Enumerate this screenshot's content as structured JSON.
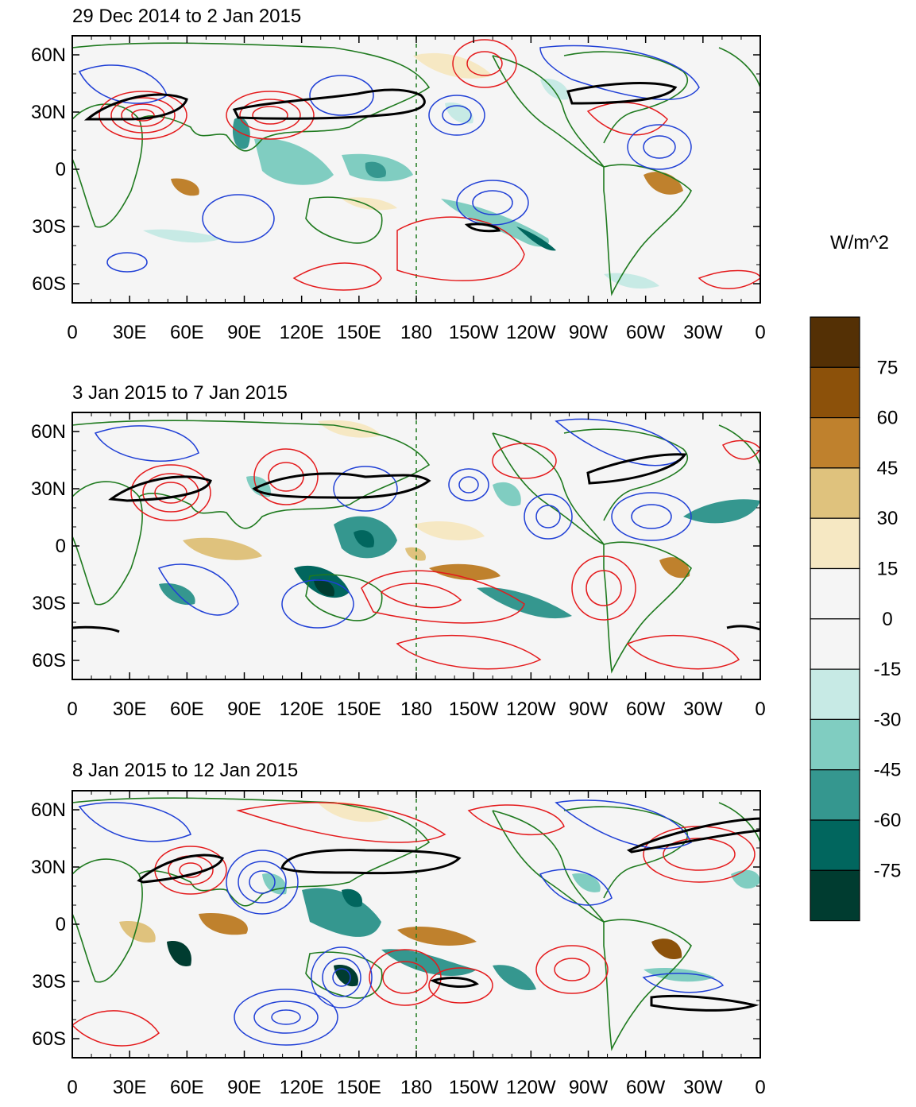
{
  "chart_data": [
    {
      "type": "map",
      "title": "29 Dec 2014 to 2 Jan 2015",
      "x_ticks": [
        "0",
        "30E",
        "60E",
        "90E",
        "120E",
        "150E",
        "180",
        "150W",
        "120W",
        "90W",
        "60W",
        "30W",
        "0"
      ],
      "y_ticks": [
        "60N",
        "30N",
        "0",
        "30S",
        "60S"
      ],
      "lon_range": [
        0,
        360
      ],
      "lat_range": [
        -70,
        70
      ],
      "dateline_lon": 180
    },
    {
      "type": "map",
      "title": "3 Jan 2015 to 7 Jan 2015",
      "x_ticks": [
        "0",
        "30E",
        "60E",
        "90E",
        "120E",
        "150E",
        "180",
        "150W",
        "120W",
        "90W",
        "60W",
        "30W",
        "0"
      ],
      "y_ticks": [
        "60N",
        "30N",
        "0",
        "30S",
        "60S"
      ],
      "lon_range": [
        0,
        360
      ],
      "lat_range": [
        -70,
        70
      ],
      "dateline_lon": 180
    },
    {
      "type": "map",
      "title": "8 Jan 2015 to 12 Jan 2015",
      "x_ticks": [
        "0",
        "30E",
        "60E",
        "90E",
        "120E",
        "150E",
        "180",
        "150W",
        "120W",
        "90W",
        "60W",
        "30W",
        "0"
      ],
      "y_ticks": [
        "60N",
        "30N",
        "0",
        "30S",
        "60S"
      ],
      "lon_range": [
        0,
        360
      ],
      "lat_range": [
        -70,
        70
      ],
      "dateline_lon": 180
    }
  ],
  "colorbar": {
    "units": "W/m^2",
    "labels": [
      "75",
      "60",
      "45",
      "30",
      "15",
      "0",
      "-15",
      "-30",
      "-45",
      "-60",
      "-75"
    ],
    "colors": [
      "#543005",
      "#8c510a",
      "#bf812d",
      "#dfc27d",
      "#f6e8c3",
      "#f5f5f5",
      "#f5f5f5",
      "#c7eae5",
      "#80cdc1",
      "#35978f",
      "#01665e",
      "#003c30"
    ]
  },
  "styles": {
    "contour_positive": "#e41a1c",
    "contour_negative": "#1f3fd6",
    "jet_contour": "#000000",
    "coastline": "#1f7a1f",
    "dateline": "#1f7a1f"
  }
}
